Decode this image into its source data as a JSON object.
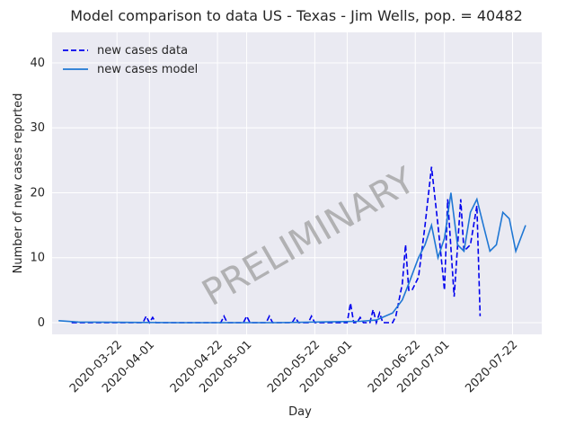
{
  "chart_data": {
    "type": "line",
    "title": "Model comparison to data US - Texas - Jim Wells, pop. = 40482",
    "x_label": "Day",
    "y_label": "Number of new cases reported",
    "annotation": "PRELIMINARY",
    "xlim": [
      "2020-03-02",
      "2020-07-31"
    ],
    "xticks": [
      "2020-03-22",
      "2020-04-01",
      "2020-04-22",
      "2020-05-01",
      "2020-05-22",
      "2020-06-01",
      "2020-06-22",
      "2020-07-01",
      "2020-07-22"
    ],
    "ylim": [
      -1.8,
      44.7
    ],
    "yticks": [
      0,
      10,
      20,
      30,
      40
    ],
    "grid": true,
    "legend": "upper left",
    "series": [
      {
        "name": "new cases data",
        "color": "#0000ee",
        "style": "dashed",
        "x": [
          "2020-03-08",
          "2020-03-30",
          "2020-03-31",
          "2020-04-01",
          "2020-04-02",
          "2020-04-03",
          "2020-04-23",
          "2020-04-24",
          "2020-04-25",
          "2020-04-30",
          "2020-05-01",
          "2020-05-02",
          "2020-05-07",
          "2020-05-08",
          "2020-05-09",
          "2020-05-15",
          "2020-05-16",
          "2020-05-17",
          "2020-05-20",
          "2020-05-21",
          "2020-05-22",
          "2020-06-01",
          "2020-06-02",
          "2020-06-03",
          "2020-06-04",
          "2020-06-05",
          "2020-06-06",
          "2020-06-08",
          "2020-06-09",
          "2020-06-10",
          "2020-06-11",
          "2020-06-12",
          "2020-06-15",
          "2020-06-16",
          "2020-06-18",
          "2020-06-19",
          "2020-06-20",
          "2020-06-21",
          "2020-06-23",
          "2020-06-25",
          "2020-06-27",
          "2020-06-29",
          "2020-07-01",
          "2020-07-02",
          "2020-07-04",
          "2020-07-06",
          "2020-07-07",
          "2020-07-09",
          "2020-07-11",
          "2020-07-12"
        ],
        "values": [
          0,
          0,
          1,
          0,
          0.8,
          0,
          0,
          1,
          0,
          0,
          1,
          0,
          0,
          1,
          0,
          0,
          0.8,
          0,
          0,
          1,
          0,
          0,
          3,
          0,
          0,
          0.8,
          0,
          0,
          2,
          0,
          1.5,
          0,
          0,
          1,
          6,
          12,
          5,
          5,
          7,
          15,
          24,
          15,
          5,
          19,
          4,
          19,
          11,
          12,
          18,
          1
        ]
      },
      {
        "name": "new cases model",
        "color": "#1f77d4",
        "style": "solid",
        "x": [
          "2020-03-04",
          "2020-03-10",
          "2020-04-10",
          "2020-05-10",
          "2020-06-05",
          "2020-06-10",
          "2020-06-15",
          "2020-06-18",
          "2020-06-20",
          "2020-06-23",
          "2020-06-25",
          "2020-06-27",
          "2020-06-29",
          "2020-07-01",
          "2020-07-03",
          "2020-07-05",
          "2020-07-07",
          "2020-07-09",
          "2020-07-11",
          "2020-07-13",
          "2020-07-15",
          "2020-07-17",
          "2020-07-19",
          "2020-07-21",
          "2020-07-23",
          "2020-07-26"
        ],
        "values": [
          0.3,
          0.1,
          0,
          0,
          0.2,
          0.4,
          1.5,
          3.5,
          6,
          10,
          12,
          15,
          10,
          13,
          20,
          12,
          11,
          17,
          19,
          15,
          11,
          12,
          17,
          16,
          11,
          15
        ]
      }
    ]
  }
}
